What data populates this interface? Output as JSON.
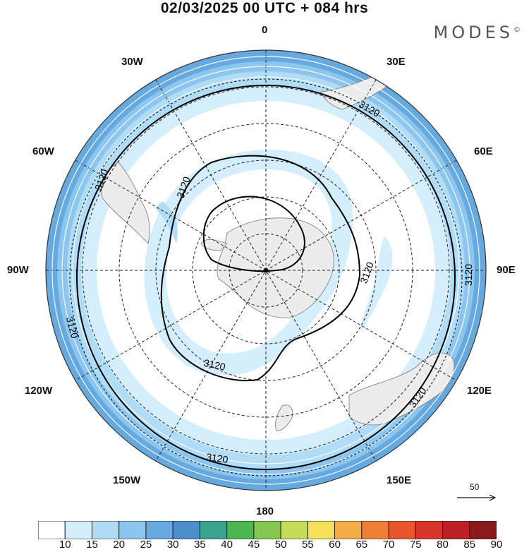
{
  "title": "02/03/2025  00 UTC  + 084 hrs",
  "brand": "MODES",
  "brand_mark": "©",
  "lon_labels": {
    "n": "0",
    "s": "180",
    "e": "90E",
    "w": "90W",
    "ne30": "30E",
    "ne60": "60E",
    "nw30": "30W",
    "nw60": "60W",
    "se120": "120E",
    "se150": "150E",
    "sw120": "120W",
    "sw150": "150W"
  },
  "contour_label": "3120",
  "vector_reference": "50",
  "colorbar": {
    "colors": [
      "#ffffff",
      "#d4eefb",
      "#b1dcf5",
      "#8cc5ee",
      "#66a9df",
      "#4d8ecb",
      "#3ba38d",
      "#4cb750",
      "#85c650",
      "#c4dc58",
      "#f6e05a",
      "#f5ad47",
      "#f07e35",
      "#e9552c",
      "#d9352a",
      "#bc2127",
      "#8b1a1c"
    ],
    "ticks": [
      "10",
      "15",
      "20",
      "25",
      "30",
      "35",
      "40",
      "45",
      "50",
      "55",
      "60",
      "65",
      "70",
      "75",
      "80",
      "85",
      "90"
    ]
  }
}
